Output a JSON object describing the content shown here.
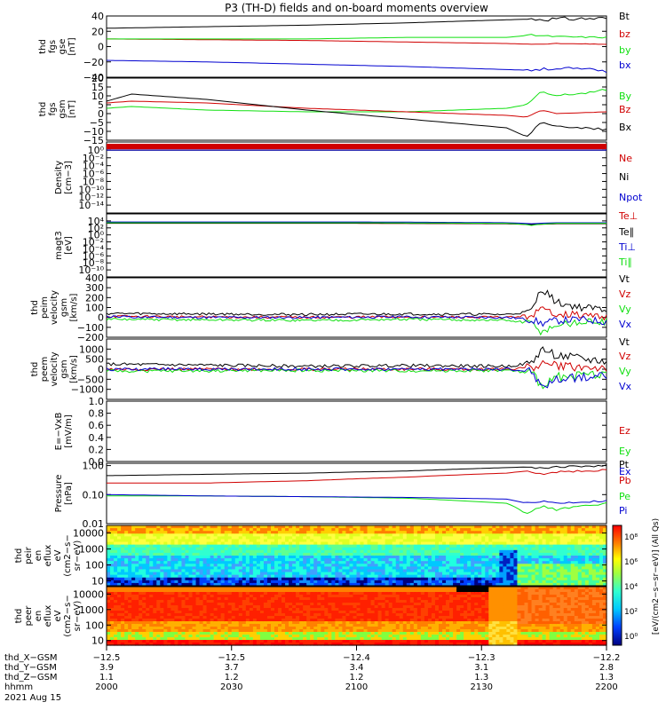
{
  "title": "P3 (TH-D) fields and on-board moments overview",
  "colors": {
    "black": "#000000",
    "red": "#d00000",
    "green": "#10e010",
    "blue": "#0000d0",
    "axis": "#000000"
  },
  "chart_data": [
    {
      "type": "line",
      "ylabel_lines": [
        "thd",
        "fgs",
        "gse",
        "[nT]"
      ],
      "ylim": [
        -40,
        40
      ],
      "ticks": [
        "40",
        "20",
        "0",
        "−20",
        "−40"
      ],
      "tick_values": [
        40,
        20,
        0,
        -20,
        -40
      ],
      "x": [
        0,
        0.2,
        0.4,
        0.6,
        0.8,
        0.85,
        0.9,
        1.0
      ],
      "series": [
        {
          "name": "Bt",
          "color": "black",
          "values": [
            24,
            26,
            28,
            31,
            35,
            36,
            36,
            37
          ]
        },
        {
          "name": "bz",
          "color": "red",
          "values": [
            10,
            9,
            8,
            6,
            4,
            3,
            4,
            3
          ]
        },
        {
          "name": "by",
          "color": "green",
          "values": [
            10,
            10,
            10,
            12,
            12,
            15,
            13,
            12
          ]
        },
        {
          "name": "bx",
          "color": "blue",
          "values": [
            -18,
            -20,
            -23,
            -26,
            -30,
            -31,
            -28,
            -32
          ]
        }
      ]
    },
    {
      "type": "line",
      "ylabel_lines": [
        "thd",
        "fgs",
        "gsm",
        "[nT]"
      ],
      "ylim": [
        -15,
        20
      ],
      "ticks": [
        "20",
        "15",
        "10",
        "5",
        "0",
        "−5",
        "−10",
        "−15"
      ],
      "tick_values": [
        20,
        15,
        10,
        5,
        0,
        -5,
        -10,
        -15
      ],
      "x": [
        0,
        0.05,
        0.2,
        0.4,
        0.6,
        0.8,
        0.84,
        0.87,
        0.9,
        1.0
      ],
      "series": [
        {
          "name": "By",
          "color": "green",
          "values": [
            3,
            4,
            2,
            1,
            1,
            3,
            5,
            12,
            10,
            13
          ]
        },
        {
          "name": "Bz",
          "color": "red",
          "values": [
            6,
            7,
            6,
            3,
            1,
            -1,
            -2,
            2,
            0,
            1
          ]
        },
        {
          "name": "Bx",
          "color": "black",
          "values": [
            7,
            11,
            8,
            2,
            -3,
            -8,
            -13,
            -5,
            -7,
            -9
          ]
        }
      ]
    },
    {
      "type": "line",
      "ylabel_lines": [
        "Density",
        "[cm−3]"
      ],
      "scale": "log",
      "ylim": [
        1e-16,
        100.0
      ],
      "ticks": [
        "10⁰",
        "10⁻²",
        "10⁻⁴",
        "10⁻⁶",
        "10⁻⁸",
        "10⁻¹⁰",
        "10⁻¹²",
        "10⁻¹⁴"
      ],
      "tick_values": [
        0,
        -2,
        -4,
        -6,
        -8,
        -10,
        -12,
        -14
      ],
      "x": [
        0,
        0.5,
        1.0
      ],
      "series": [
        {
          "name": "Ne",
          "color": "red",
          "values": [
            1,
            1,
            1
          ]
        },
        {
          "name": "Ni",
          "color": "black",
          "values": [
            0.8,
            0.8,
            0.8
          ]
        },
        {
          "name": "Npot",
          "color": "blue",
          "values": [
            0.9,
            0.9,
            0.9
          ]
        }
      ]
    },
    {
      "type": "line",
      "ylabel_lines": [
        "magt3",
        "[eV]"
      ],
      "scale": "log",
      "ylim": [
        1e-12,
        1000000.0
      ],
      "ticks": [
        "10⁴",
        "10²",
        "10⁰",
        "10⁻²",
        "10⁻⁴",
        "10⁻⁶",
        "10⁻⁸",
        "10⁻¹⁰"
      ],
      "tick_values": [
        4,
        2,
        0,
        -2,
        -4,
        -6,
        -8,
        -10
      ],
      "x": [
        0,
        0.5,
        0.8,
        0.85,
        0.9,
        1.0
      ],
      "series": [
        {
          "name": "Te⊥",
          "color": "red",
          "values": [
            2000,
            2000,
            1500,
            800,
            1500,
            1500
          ]
        },
        {
          "name": "Te∥",
          "color": "black",
          "values": [
            2200,
            2200,
            1600,
            900,
            1600,
            1600
          ]
        },
        {
          "name": "Ti⊥",
          "color": "blue",
          "values": [
            5000,
            5000,
            3000,
            1500,
            3000,
            3000
          ]
        },
        {
          "name": "Ti∥",
          "color": "green",
          "values": [
            3000,
            3000,
            2000,
            500,
            2000,
            2000
          ]
        }
      ]
    },
    {
      "type": "line",
      "ylabel_lines": [
        "thd",
        "peim",
        "velocity",
        "gsm",
        "[km/s]"
      ],
      "ylim": [
        -200,
        400
      ],
      "ticks": [
        "400",
        "300",
        "200",
        "100",
        "0",
        "−100",
        "−200"
      ],
      "tick_values": [
        400,
        300,
        200,
        100,
        0,
        -100,
        -200
      ],
      "x": [
        0,
        0.2,
        0.4,
        0.6,
        0.8,
        0.85,
        0.87,
        0.9,
        0.95,
        1.0
      ],
      "series": [
        {
          "name": "Vt",
          "color": "black",
          "values": [
            40,
            35,
            30,
            35,
            30,
            60,
            300,
            150,
            100,
            80
          ]
        },
        {
          "name": "Vz",
          "color": "red",
          "values": [
            10,
            5,
            0,
            5,
            0,
            20,
            80,
            40,
            20,
            10
          ]
        },
        {
          "name": "Vy",
          "color": "green",
          "values": [
            -20,
            -25,
            -30,
            -20,
            -30,
            -60,
            -150,
            -80,
            -50,
            -40
          ]
        },
        {
          "name": "Vx",
          "color": "blue",
          "values": [
            5,
            0,
            0,
            5,
            0,
            -20,
            -60,
            -30,
            -20,
            -40
          ]
        }
      ]
    },
    {
      "type": "line",
      "ylabel_lines": [
        "thd",
        "peem",
        "velocity",
        "gsm",
        "[km/s]"
      ],
      "ylim": [
        -1500,
        1500
      ],
      "ticks": [
        "1000",
        "500",
        "0",
        "−500",
        "−1000"
      ],
      "tick_values": [
        1000,
        500,
        0,
        -500,
        -1000
      ],
      "x": [
        0,
        0.2,
        0.4,
        0.6,
        0.8,
        0.85,
        0.87,
        0.9,
        0.95,
        1.0
      ],
      "series": [
        {
          "name": "Vt",
          "color": "black",
          "values": [
            250,
            200,
            150,
            180,
            150,
            300,
            1000,
            700,
            500,
            400
          ]
        },
        {
          "name": "Vz",
          "color": "red",
          "values": [
            0,
            0,
            0,
            0,
            0,
            100,
            300,
            200,
            100,
            50
          ]
        },
        {
          "name": "Vy",
          "color": "green",
          "values": [
            -100,
            -80,
            -60,
            -80,
            -60,
            -200,
            -800,
            -400,
            -300,
            -200
          ]
        },
        {
          "name": "Vx",
          "color": "blue",
          "values": [
            0,
            0,
            0,
            0,
            0,
            -100,
            -900,
            -500,
            -400,
            -300
          ]
        }
      ]
    },
    {
      "type": "line",
      "ylabel_lines": [
        "E=−VxB",
        "[mV/m]"
      ],
      "ylim": [
        0,
        1.0
      ],
      "ticks": [
        "1.0",
        "0.8",
        "0.6",
        "0.4",
        "0.2",
        "0.0"
      ],
      "tick_values": [
        1.0,
        0.8,
        0.6,
        0.4,
        0.2,
        0.0
      ],
      "x": [],
      "series": [
        {
          "name": "Ez",
          "color": "red",
          "values": []
        },
        {
          "name": "Ey",
          "color": "green",
          "values": []
        },
        {
          "name": "Ex",
          "color": "blue",
          "values": []
        }
      ]
    },
    {
      "type": "line",
      "ylabel_lines": [
        "Pressure",
        "[nPa]"
      ],
      "scale": "log",
      "ylim": [
        0.01,
        1.2
      ],
      "ticks": [
        "1.00",
        "0.10",
        "0.01"
      ],
      "tick_values": [
        0,
        -1,
        -2
      ],
      "x": [
        0,
        0.2,
        0.4,
        0.6,
        0.8,
        0.84,
        0.87,
        0.9,
        1.0
      ],
      "series": [
        {
          "name": "Pt",
          "color": "black",
          "values": [
            0.45,
            0.5,
            0.55,
            0.65,
            0.85,
            0.9,
            0.8,
            0.9,
            1.0
          ]
        },
        {
          "name": "Pb",
          "color": "red",
          "values": [
            0.25,
            0.25,
            0.3,
            0.4,
            0.55,
            0.65,
            0.5,
            0.6,
            0.7
          ]
        },
        {
          "name": "Pe",
          "color": "green",
          "values": [
            0.09,
            0.09,
            0.085,
            0.075,
            0.05,
            0.02,
            0.04,
            0.03,
            0.05
          ]
        },
        {
          "name": "Pi",
          "color": "blue",
          "values": [
            0.1,
            0.09,
            0.085,
            0.08,
            0.07,
            0.05,
            0.06,
            0.05,
            0.06
          ]
        }
      ]
    },
    {
      "type": "heatmap",
      "ylabel_lines": [
        "thd",
        "peir",
        "en",
        "eflux",
        "eV",
        "(cm2−s−",
        "sr−eV)"
      ],
      "scale": "log",
      "ylim": [
        5,
        30000
      ],
      "ticks": [
        "10000",
        "1000",
        "100",
        "10"
      ],
      "tick_values": [
        4,
        3,
        2,
        1
      ]
    },
    {
      "type": "heatmap",
      "ylabel_lines": [
        "thd",
        "peer",
        "en",
        "eflux",
        "eV",
        "(cm2−s−",
        "sr−eV)"
      ],
      "scale": "log",
      "ylim": [
        5,
        30000
      ],
      "ticks": [
        "10000",
        "1000",
        "100",
        "10"
      ],
      "tick_values": [
        4,
        3,
        2,
        1
      ]
    }
  ],
  "colorbar": {
    "label": "[eV/(cm2−s−sr−eV)]",
    "ticks": [
      "10⁸",
      "10⁶",
      "10⁴",
      "10²",
      "10⁰"
    ],
    "label2": "(All Qs)"
  },
  "xaxis": {
    "row_labels": [
      "thd_X−GSM",
      "thd_Y−GSM",
      "thd_Z−GSM",
      "hhmm",
      "2021 Aug 15"
    ],
    "columns": [
      {
        "frac": 0.0,
        "values": [
          "−12.5",
          "3.9",
          "1.1",
          "2000"
        ]
      },
      {
        "frac": 0.25,
        "values": [
          "−12.5",
          "3.7",
          "1.2",
          "2030"
        ]
      },
      {
        "frac": 0.5,
        "values": [
          "−12.4",
          "3.4",
          "1.2",
          "2100"
        ]
      },
      {
        "frac": 0.75,
        "values": [
          "−12.3",
          "3.1",
          "1.3",
          "2130"
        ]
      },
      {
        "frac": 1.0,
        "values": [
          "−12.2",
          "2.8",
          "1.3",
          "2200"
        ]
      }
    ]
  }
}
